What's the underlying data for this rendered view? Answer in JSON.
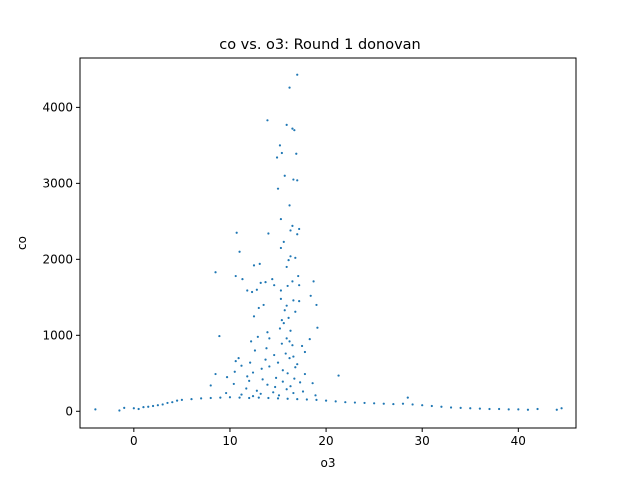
{
  "chart_data": {
    "type": "scatter",
    "title": "co vs. o3: Round 1 donovan",
    "xlabel": "o3",
    "ylabel": "co",
    "xlim": [
      -5.6,
      46.0
    ],
    "ylim": [
      -220,
      4650
    ],
    "xticks": [
      0,
      10,
      20,
      30,
      40
    ],
    "yticks": [
      0,
      1000,
      2000,
      3000,
      4000
    ],
    "grid": false,
    "legend": "none",
    "marker_color": "#1f77b4",
    "series": [
      {
        "points": [
          [
            -4.0,
            25
          ],
          [
            -1.5,
            10
          ],
          [
            -1.0,
            45
          ],
          [
            0.0,
            40
          ],
          [
            0.5,
            30
          ],
          [
            1.0,
            55
          ],
          [
            1.5,
            60
          ],
          [
            2.0,
            70
          ],
          [
            2.5,
            80
          ],
          [
            3.0,
            90
          ],
          [
            3.5,
            110
          ],
          [
            4.0,
            120
          ],
          [
            4.5,
            140
          ],
          [
            5.0,
            150
          ],
          [
            6.0,
            160
          ],
          [
            7.0,
            170
          ],
          [
            8.0,
            175
          ],
          [
            9.0,
            180
          ],
          [
            10.0,
            185
          ],
          [
            11.0,
            180
          ],
          [
            12.0,
            175
          ],
          [
            13.0,
            180
          ],
          [
            14.0,
            175
          ],
          [
            15.0,
            170
          ],
          [
            16.0,
            165
          ],
          [
            17.0,
            160
          ],
          [
            18.0,
            155
          ],
          [
            19.0,
            150
          ],
          [
            20.0,
            140
          ],
          [
            21.0,
            130
          ],
          [
            22.0,
            120
          ],
          [
            23.0,
            115
          ],
          [
            24.0,
            110
          ],
          [
            25.0,
            105
          ],
          [
            26.0,
            100
          ],
          [
            27.0,
            95
          ],
          [
            28.0,
            100
          ],
          [
            28.5,
            180
          ],
          [
            29.0,
            90
          ],
          [
            30.0,
            80
          ],
          [
            31.0,
            70
          ],
          [
            32.0,
            60
          ],
          [
            33.0,
            50
          ],
          [
            34.0,
            45
          ],
          [
            35.0,
            40
          ],
          [
            36.0,
            35
          ],
          [
            37.0,
            30
          ],
          [
            38.0,
            30
          ],
          [
            39.0,
            25
          ],
          [
            40.0,
            25
          ],
          [
            41.0,
            20
          ],
          [
            42.0,
            30
          ],
          [
            44.0,
            20
          ],
          [
            44.5,
            40
          ],
          [
            17.0,
            4430
          ],
          [
            16.2,
            4260
          ],
          [
            13.9,
            3830
          ],
          [
            15.9,
            3770
          ],
          [
            16.5,
            3720
          ],
          [
            16.7,
            3700
          ],
          [
            15.2,
            3500
          ],
          [
            15.4,
            3400
          ],
          [
            16.9,
            3390
          ],
          [
            14.9,
            3340
          ],
          [
            15.7,
            3100
          ],
          [
            16.6,
            3050
          ],
          [
            17.0,
            3040
          ],
          [
            15.0,
            2930
          ],
          [
            16.2,
            2710
          ],
          [
            15.3,
            2530
          ],
          [
            16.5,
            2440
          ],
          [
            16.3,
            2380
          ],
          [
            17.2,
            2400
          ],
          [
            17.0,
            2330
          ],
          [
            10.7,
            2350
          ],
          [
            14.0,
            2340
          ],
          [
            15.6,
            2230
          ],
          [
            15.3,
            2150
          ],
          [
            11.0,
            2100
          ],
          [
            16.3,
            2040
          ],
          [
            16.8,
            2020
          ],
          [
            16.1,
            1990
          ],
          [
            13.1,
            1940
          ],
          [
            12.5,
            1920
          ],
          [
            15.9,
            1900
          ],
          [
            8.5,
            1830
          ],
          [
            10.6,
            1780
          ],
          [
            11.3,
            1740
          ],
          [
            17.1,
            1780
          ],
          [
            13.7,
            1700
          ],
          [
            14.4,
            1740
          ],
          [
            16.5,
            1710
          ],
          [
            18.7,
            1710
          ],
          [
            13.2,
            1690
          ],
          [
            14.6,
            1660
          ],
          [
            17.2,
            1660
          ],
          [
            16.0,
            1650
          ],
          [
            11.8,
            1590
          ],
          [
            15.3,
            1590
          ],
          [
            12.3,
            1570
          ],
          [
            12.8,
            1600
          ],
          [
            18.4,
            1520
          ],
          [
            15.3,
            1480
          ],
          [
            16.6,
            1460
          ],
          [
            17.2,
            1450
          ],
          [
            19.0,
            1400
          ],
          [
            15.9,
            1390
          ],
          [
            13.5,
            1400
          ],
          [
            13.0,
            1360
          ],
          [
            15.7,
            1330
          ],
          [
            16.8,
            1310
          ],
          [
            12.5,
            1250
          ],
          [
            16.1,
            1230
          ],
          [
            15.4,
            1200
          ],
          [
            15.6,
            1160
          ],
          [
            19.1,
            1100
          ],
          [
            15.2,
            1090
          ],
          [
            16.3,
            1060
          ],
          [
            13.9,
            1040
          ],
          [
            12.9,
            980
          ],
          [
            14.1,
            960
          ],
          [
            15.9,
            960
          ],
          [
            8.9,
            990
          ],
          [
            18.3,
            950
          ],
          [
            12.2,
            920
          ],
          [
            16.2,
            920
          ],
          [
            15.4,
            890
          ],
          [
            16.5,
            870
          ],
          [
            17.5,
            860
          ],
          [
            13.8,
            830
          ],
          [
            12.6,
            800
          ],
          [
            17.8,
            780
          ],
          [
            15.8,
            760
          ],
          [
            14.6,
            740
          ],
          [
            16.6,
            720
          ],
          [
            10.9,
            700
          ],
          [
            16.2,
            700
          ],
          [
            13.7,
            680
          ],
          [
            10.6,
            660
          ],
          [
            12.1,
            640
          ],
          [
            15.0,
            640
          ],
          [
            17.0,
            620
          ],
          [
            11.2,
            600
          ],
          [
            14.1,
            590
          ],
          [
            16.8,
            580
          ],
          [
            13.3,
            560
          ],
          [
            15.5,
            540
          ],
          [
            10.5,
            520
          ],
          [
            12.4,
            510
          ],
          [
            16.0,
            500
          ],
          [
            17.8,
            490
          ],
          [
            21.3,
            470
          ],
          [
            8.5,
            490
          ],
          [
            9.7,
            450
          ],
          [
            11.8,
            460
          ],
          [
            14.8,
            440
          ],
          [
            16.7,
            430
          ],
          [
            13.4,
            420
          ],
          [
            12.0,
            400
          ],
          [
            15.5,
            390
          ],
          [
            17.3,
            380
          ],
          [
            18.6,
            370
          ],
          [
            10.4,
            360
          ],
          [
            13.9,
            350
          ],
          [
            8.0,
            340
          ],
          [
            16.3,
            330
          ],
          [
            14.7,
            320
          ],
          [
            11.7,
            300
          ],
          [
            15.9,
            290
          ],
          [
            12.8,
            270
          ],
          [
            17.6,
            260
          ],
          [
            14.5,
            250
          ],
          [
            9.6,
            240
          ],
          [
            16.6,
            240
          ],
          [
            13.2,
            230
          ],
          [
            11.2,
            220
          ],
          [
            15.1,
            210
          ],
          [
            18.9,
            210
          ],
          [
            12.4,
            200
          ]
        ]
      }
    ]
  }
}
